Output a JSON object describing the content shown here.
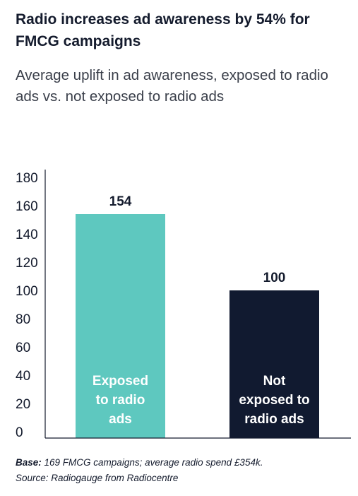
{
  "header": {
    "title": "Radio increases ad awareness by 54% for FMCG campaigns",
    "subtitle": "Average uplift in ad awareness, exposed to radio ads vs. not exposed to radio ads"
  },
  "footer": {
    "base_label": "Base:",
    "base_text": " 169 FMCG campaigns; average radio spend £354k.",
    "source": "Source: Radiogauge from Radiocentre"
  },
  "chart_data": {
    "type": "bar",
    "categories": [
      "Exposed to radio ads",
      "Not exposed to radio ads"
    ],
    "category_lines": [
      [
        "Exposed",
        "to radio",
        "ads"
      ],
      [
        "Not",
        "exposed to",
        "radio ads"
      ]
    ],
    "values": [
      154,
      100
    ],
    "data_labels": [
      "154",
      "100"
    ],
    "colors": [
      "#5ec8bf",
      "#111a30"
    ],
    "yticks": [
      0,
      20,
      40,
      60,
      80,
      100,
      120,
      140,
      160,
      180
    ],
    "ylim": [
      0,
      180
    ],
    "grid": false,
    "xlabel": "",
    "ylabel": ""
  }
}
